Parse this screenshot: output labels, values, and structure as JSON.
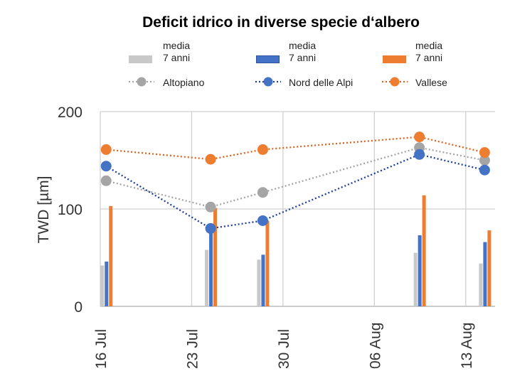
{
  "chart_data": {
    "type": "bar+line",
    "title": "Deficit idrico in diverse specie d‘albero",
    "ylabel": "TWD [µm]",
    "ylim": [
      0,
      200
    ],
    "yticks": [
      "0",
      "100",
      "200"
    ],
    "xticks": [
      "16 Jul",
      "23 Jul",
      "30 Jul",
      "06 Aug",
      "13 Aug"
    ],
    "grid": true,
    "legend_position": "top",
    "x": [
      "16 Jul",
      "24 Jul",
      "28 Jul",
      "09 Aug",
      "14 Aug"
    ],
    "bar_series": [
      {
        "name": "media 7 anni",
        "region": "Altopiano",
        "color": "#c8c8c8",
        "values": [
          42,
          58,
          48,
          55,
          44
        ]
      },
      {
        "name": "media 7 anni",
        "region": "Nord delle Alpi",
        "color": "#4472c4",
        "values": [
          46,
          80,
          53,
          73,
          66
        ]
      },
      {
        "name": "media 7 anni",
        "region": "Vallese",
        "color": "#ed7d31",
        "values": [
          103,
          101,
          88,
          114,
          78
        ]
      }
    ],
    "line_series": [
      {
        "name": "Altopiano",
        "color": "#a5a5a5",
        "values": [
          129,
          102,
          117,
          163,
          150
        ]
      },
      {
        "name": "Nord delle Alpi",
        "color": "#4472c4",
        "line_color": "#1f3e9c",
        "values": [
          144,
          80,
          88,
          156,
          140
        ]
      },
      {
        "name": "Vallese",
        "color": "#ed7d31",
        "line_color": "#e0621c",
        "values": [
          161,
          151,
          161,
          174,
          158
        ]
      }
    ],
    "legend": {
      "bar_label_line1": "media",
      "bar_label_line2": "7 anni"
    }
  }
}
